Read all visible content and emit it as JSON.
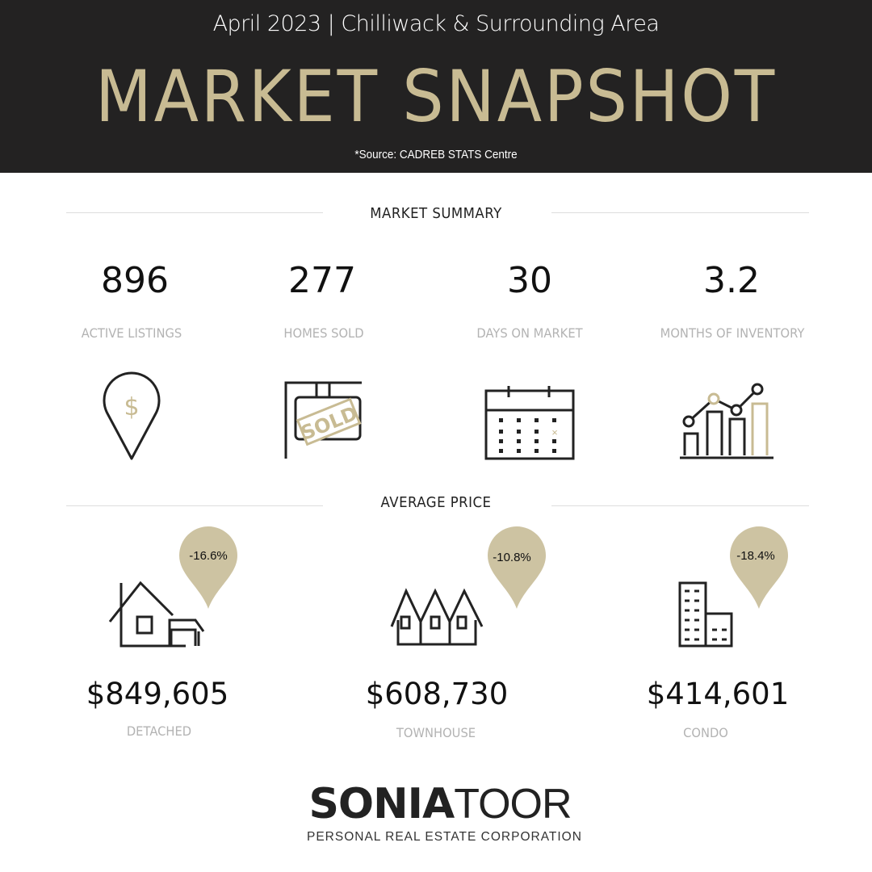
{
  "header": {
    "subtitle": "April 2023 | Chilliwack & Surrounding Area",
    "title": "MARKET SNAPSHOT",
    "source": "*Source: CADREB STATS Centre"
  },
  "colors": {
    "header_bg": "#232222",
    "gold": "#c8bb93",
    "pin": "#cdc3a2",
    "label": "#b3b3b3"
  },
  "market_summary": {
    "heading": "MARKET SUMMARY",
    "stats": [
      {
        "value": "896",
        "label": "ACTIVE LISTINGS",
        "icon": "location-dollar-icon"
      },
      {
        "value": "277",
        "label": "HOMES SOLD",
        "icon": "sold-sign-icon"
      },
      {
        "value": "30",
        "label": "DAYS ON MARKET",
        "icon": "calendar-icon"
      },
      {
        "value": "3.2",
        "label": "MONTHS OF INVENTORY",
        "icon": "bar-chart-icon"
      }
    ]
  },
  "average_price": {
    "heading": "AVERAGE PRICE",
    "items": [
      {
        "price": "$849,605",
        "label": "DETACHED",
        "change": "-16.6%",
        "icon": "house-icon"
      },
      {
        "price": "$608,730",
        "label": "TOWNHOUSE",
        "change": "-10.8%",
        "icon": "townhouse-icon"
      },
      {
        "price": "$414,601",
        "label": "CONDO",
        "change": "-18.4%",
        "icon": "condo-building-icon"
      }
    ]
  },
  "logo": {
    "name_bold": "SONIA",
    "name_light": "TOOR",
    "tagline": "PERSONAL REAL ESTATE CORPORATION"
  }
}
